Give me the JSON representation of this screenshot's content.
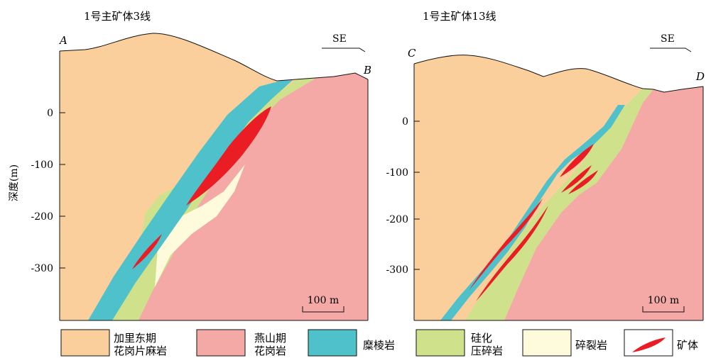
{
  "sections": [
    {
      "title": "1号主矿体3线",
      "start_label": "A",
      "end_label": "B",
      "direction": "SE",
      "scale_label": "100 m",
      "depth_ticks": [
        "0",
        "-100",
        "-200",
        "-300"
      ]
    },
    {
      "title": "1号主矿体13线",
      "start_label": "C",
      "end_label": "D",
      "direction": "SE",
      "scale_label": "100 m",
      "depth_ticks": [
        "0",
        "-100",
        "-200",
        "-300"
      ]
    }
  ],
  "axis_label": "深度(m)",
  "legend": [
    {
      "line1": "加里东期",
      "line2": "花岗片麻岩",
      "color": "#fbcf9c"
    },
    {
      "line1": "燕山期",
      "line2": "花岗岩",
      "color": "#f4a9a7"
    },
    {
      "line1": "糜棱岩",
      "line2": "",
      "color": "#4fc1ca"
    },
    {
      "line1": "硅化",
      "line2": "压碎岩",
      "color": "#cfe18a"
    },
    {
      "line1": "碎裂岩",
      "line2": "",
      "color": "#fefadc"
    },
    {
      "line1": "矿体",
      "line2": "",
      "color": "#ea1c24"
    }
  ]
}
